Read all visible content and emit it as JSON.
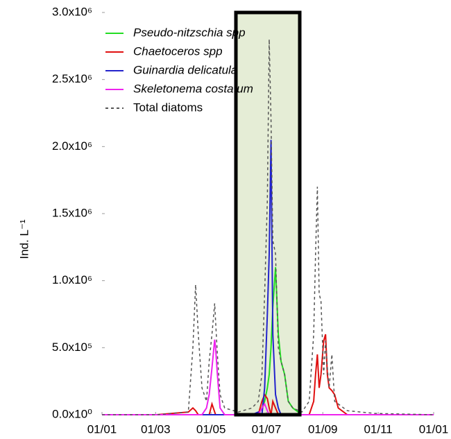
{
  "chart_data": {
    "type": "line",
    "y_label": "Ind. L⁻¹",
    "x": [
      0,
      60,
      95,
      100,
      103,
      106,
      110,
      115,
      118,
      121,
      124,
      125,
      127,
      130,
      135,
      150,
      165,
      172,
      176,
      179,
      182,
      184,
      186,
      188,
      191,
      194,
      197,
      201,
      205,
      210,
      220,
      228,
      233,
      235,
      237,
      239,
      241,
      244,
      246,
      248,
      250,
      253,
      256,
      260,
      270,
      300,
      365
    ],
    "xlim": [
      0,
      365
    ],
    "xticks": [
      {
        "value": 0,
        "label": "01/01"
      },
      {
        "value": 59,
        "label": "01/03"
      },
      {
        "value": 120,
        "label": "01/05"
      },
      {
        "value": 181,
        "label": "01/07"
      },
      {
        "value": 243,
        "label": "01/09"
      },
      {
        "value": 304,
        "label": "01/11"
      },
      {
        "value": 365,
        "label": "01/01"
      }
    ],
    "ylim": [
      0,
      3000000
    ],
    "yticks": [
      {
        "value": 0,
        "label": "0.0x10⁰"
      },
      {
        "value": 500000,
        "label": "5.0x10⁵"
      },
      {
        "value": 1000000,
        "label": "1.0x10⁶"
      },
      {
        "value": 1500000,
        "label": "1.5x10⁶"
      },
      {
        "value": 2000000,
        "label": "2.0x10⁶"
      },
      {
        "value": 2500000,
        "label": "2.5x10⁶"
      },
      {
        "value": 3000000,
        "label": "3.0x10⁶"
      }
    ],
    "series": [
      {
        "name": "Pseudo-nitzschia spp",
        "color": "#22dd22",
        "italic": true,
        "values": [
          0,
          0,
          0,
          0,
          0,
          0,
          0,
          0,
          0,
          0,
          0,
          0,
          0,
          0,
          0,
          0,
          0,
          0,
          50000,
          100000,
          200000,
          300000,
          500000,
          800000,
          1100000,
          600000,
          400000,
          300000,
          100000,
          50000,
          0,
          0,
          0,
          0,
          0,
          0,
          0,
          0,
          0,
          0,
          0,
          0,
          0,
          0,
          0,
          0,
          0
        ]
      },
      {
        "name": "Chaetoceros spp",
        "color": "#e01010",
        "italic": true,
        "values": [
          0,
          0,
          20000,
          50000,
          30000,
          0,
          0,
          0,
          0,
          80000,
          20000,
          0,
          0,
          0,
          0,
          0,
          0,
          0,
          100000,
          150000,
          120000,
          50000,
          0,
          100000,
          50000,
          0,
          0,
          0,
          0,
          0,
          0,
          0,
          100000,
          300000,
          450000,
          200000,
          300000,
          550000,
          600000,
          300000,
          200000,
          180000,
          150000,
          50000,
          0,
          0,
          0
        ]
      },
      {
        "name": "Guinardia delicatula",
        "color": "#2222cc",
        "italic": true,
        "values": [
          0,
          0,
          0,
          0,
          0,
          0,
          0,
          0,
          0,
          0,
          0,
          0,
          0,
          0,
          0,
          0,
          0,
          20000,
          0,
          200000,
          750000,
          1200000,
          2050000,
          600000,
          150000,
          50000,
          0,
          0,
          0,
          0,
          0,
          0,
          0,
          0,
          0,
          0,
          0,
          0,
          0,
          0,
          0,
          0,
          0,
          0,
          0,
          0,
          0
        ]
      },
      {
        "name": "Skeletonema costatum",
        "color": "#ee22ee",
        "italic": true,
        "values": [
          0,
          0,
          0,
          0,
          0,
          0,
          0,
          50000,
          150000,
          350000,
          560000,
          500000,
          300000,
          50000,
          0,
          0,
          0,
          0,
          50000,
          80000,
          30000,
          0,
          0,
          0,
          0,
          0,
          0,
          0,
          0,
          0,
          0,
          0,
          0,
          0,
          0,
          0,
          0,
          0,
          0,
          0,
          0,
          0,
          0,
          0,
          0,
          0,
          0
        ]
      },
      {
        "name": "Total diatoms",
        "color": "#555555",
        "dashed": true,
        "values": [
          0,
          0,
          20000,
          500000,
          970000,
          600000,
          200000,
          100000,
          400000,
          600000,
          830000,
          700000,
          450000,
          150000,
          50000,
          20000,
          50000,
          100000,
          300000,
          900000,
          1600000,
          2800000,
          2200000,
          1300000,
          1200000,
          500000,
          400000,
          300000,
          100000,
          50000,
          20000,
          100000,
          600000,
          1200000,
          1700000,
          900000,
          850000,
          300000,
          550000,
          350000,
          200000,
          450000,
          100000,
          80000,
          30000,
          10000,
          0
        ]
      }
    ]
  }
}
